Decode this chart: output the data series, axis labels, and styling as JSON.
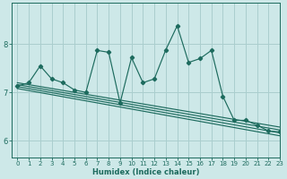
{
  "xlabel": "Humidex (Indice chaleur)",
  "background_color": "#cde8e8",
  "grid_color": "#aacece",
  "line_color": "#1d6b5e",
  "xlim": [
    -0.5,
    23
  ],
  "ylim": [
    5.65,
    8.85
  ],
  "xticks": [
    0,
    1,
    2,
    3,
    4,
    5,
    6,
    7,
    8,
    9,
    10,
    11,
    12,
    13,
    14,
    15,
    16,
    17,
    18,
    19,
    20,
    21,
    22,
    23
  ],
  "yticks": [
    6,
    7,
    8
  ],
  "main_x": [
    0,
    1,
    2,
    3,
    4,
    5,
    6,
    7,
    8,
    9,
    10,
    11,
    12,
    13,
    14,
    15,
    16,
    17,
    18,
    19,
    20,
    21,
    22,
    23
  ],
  "main_y": [
    7.13,
    7.2,
    7.55,
    7.28,
    7.2,
    7.05,
    7.0,
    7.87,
    7.83,
    6.78,
    7.72,
    7.2,
    7.28,
    7.88,
    8.38,
    7.62,
    7.7,
    7.87,
    6.92,
    6.42,
    6.42,
    6.32,
    6.2,
    6.18
  ],
  "trend_lines": [
    {
      "x0": 0,
      "y0": 7.2,
      "x1": 23,
      "y1": 6.28
    },
    {
      "x0": 0,
      "y0": 7.16,
      "x1": 23,
      "y1": 6.22
    },
    {
      "x0": 0,
      "y0": 7.12,
      "x1": 23,
      "y1": 6.16
    },
    {
      "x0": 0,
      "y0": 7.08,
      "x1": 23,
      "y1": 6.1
    }
  ]
}
